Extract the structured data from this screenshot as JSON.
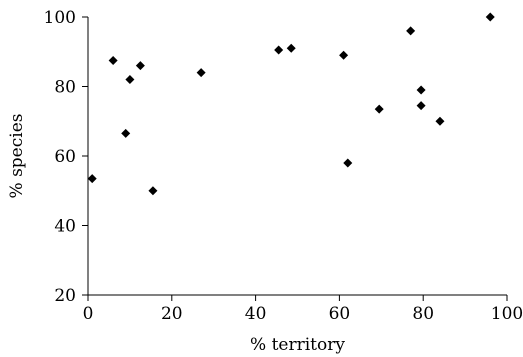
{
  "chart_data": {
    "type": "scatter",
    "title": "",
    "xlabel": "% territory",
    "ylabel": "% species",
    "xlim": [
      0,
      100
    ],
    "ylim": [
      20,
      100
    ],
    "xticks": [
      0,
      20,
      40,
      60,
      80,
      100
    ],
    "yticks": [
      20,
      40,
      60,
      80,
      100
    ],
    "grid": false,
    "legend": "none",
    "marker": "diamond",
    "color": "#000000",
    "points": [
      {
        "x": 1,
        "y": 53.5
      },
      {
        "x": 6,
        "y": 87.5
      },
      {
        "x": 9,
        "y": 66.5
      },
      {
        "x": 10,
        "y": 82
      },
      {
        "x": 12.5,
        "y": 86
      },
      {
        "x": 15.5,
        "y": 50
      },
      {
        "x": 27,
        "y": 84
      },
      {
        "x": 45.5,
        "y": 90.5
      },
      {
        "x": 48.5,
        "y": 91
      },
      {
        "x": 61,
        "y": 89
      },
      {
        "x": 62,
        "y": 58
      },
      {
        "x": 69.5,
        "y": 73.5
      },
      {
        "x": 77,
        "y": 96
      },
      {
        "x": 79.5,
        "y": 79
      },
      {
        "x": 79.5,
        "y": 74.5
      },
      {
        "x": 84,
        "y": 70
      },
      {
        "x": 96,
        "y": 100
      }
    ]
  }
}
